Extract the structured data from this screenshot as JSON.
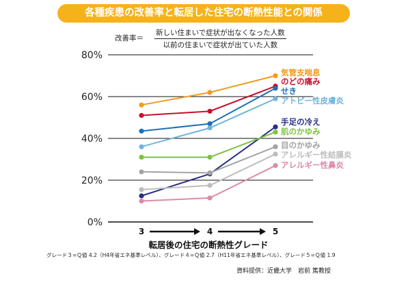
{
  "title": "各種疾患の改善率と転居した住宅の断熱性能との関係",
  "formula": {
    "lhs": "改善率＝",
    "numerator": "新しい住まいで症状が出なくなった人数",
    "denominator": "以前の住まいで症状が出ていた人数"
  },
  "footnote": "グレード３=Ｑ値 4.2（H4年省エネ基準レベル）、グレード４=Ｑ値 2.7（H11年省エネ基準レベル）、グレード５=Ｑ値 1.9",
  "source": "資料提供：近畿大学　岩前 篤教授",
  "chart_data": {
    "type": "line",
    "title": "各種疾患の改善率と転居した住宅の断熱性能との関係",
    "xlabel": "転居後の住宅の断熱性グレード",
    "ylabel": "",
    "x": [
      "3",
      "4",
      "5"
    ],
    "ylim": [
      0,
      80
    ],
    "yticks": [
      0,
      20,
      40,
      60,
      80
    ],
    "ytick_labels": [
      "0%",
      "20%",
      "40%",
      "60%",
      "80%"
    ],
    "grid": "horizontal",
    "series": [
      {
        "name": "気管支喘息",
        "color": "#f39a1f",
        "values": [
          56,
          62,
          70
        ]
      },
      {
        "name": "のどの痛み",
        "color": "#c8102e",
        "values": [
          51,
          53,
          65
        ]
      },
      {
        "name": "せき",
        "color": "#1e6fb8",
        "values": [
          43.5,
          47,
          64
        ]
      },
      {
        "name": "アトピー性皮膚炎",
        "color": "#6fb4dc",
        "values": [
          36,
          45,
          59
        ]
      },
      {
        "name": "手足の冷え",
        "color": "#2a2e86",
        "values": [
          12.5,
          23,
          45.5
        ]
      },
      {
        "name": "肌のかゆみ",
        "color": "#7fc241",
        "values": [
          31,
          31,
          43
        ]
      },
      {
        "name": "目のかゆみ",
        "color": "#a3a3a3",
        "values": [
          24,
          23.5,
          36
        ]
      },
      {
        "name": "アレルギー性結膜炎",
        "color": "#bdbdbd",
        "values": [
          15.5,
          17.5,
          32.5
        ]
      },
      {
        "name": "アレルギー性鼻炎",
        "color": "#dd8aa8",
        "values": [
          10,
          11.5,
          27
        ]
      }
    ]
  }
}
